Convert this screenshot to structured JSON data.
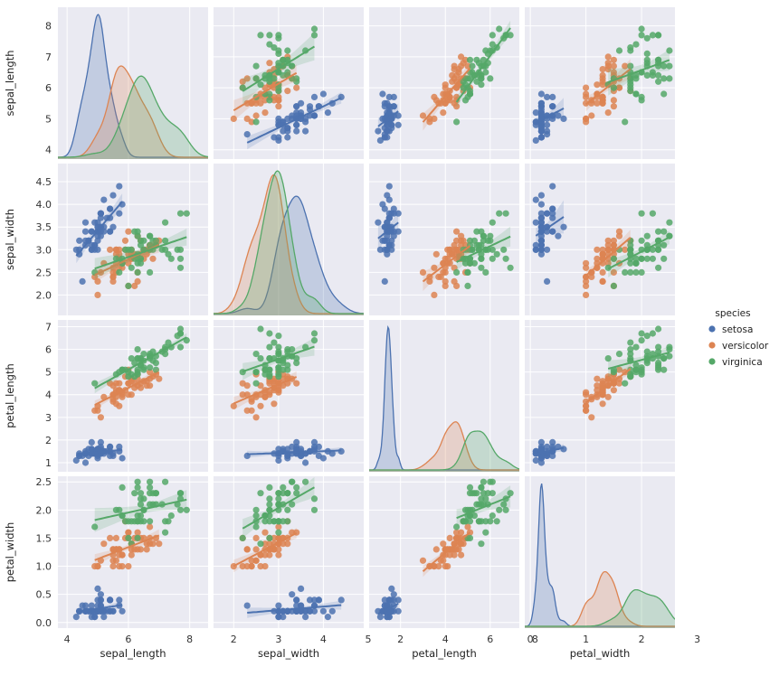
{
  "chart_data": {
    "type": "scatter",
    "variables": [
      "sepal_length",
      "sepal_width",
      "petal_length",
      "petal_width"
    ],
    "axes": {
      "sepal_length": {
        "range": [
          3.7,
          8.6
        ],
        "ticks": [
          "4",
          "5",
          "6",
          "7",
          "8"
        ],
        "ticks_x": [
          "4",
          "6",
          "8"
        ]
      },
      "sepal_width": {
        "range": [
          1.55,
          4.9
        ],
        "ticks": [
          "2.0",
          "2.5",
          "3.0",
          "3.5",
          "4.0",
          "4.5"
        ],
        "ticks_x": [
          "2",
          "3",
          "4",
          "5"
        ]
      },
      "petal_length": {
        "range": [
          0.6,
          7.3
        ],
        "ticks": [
          "1",
          "2",
          "3",
          "4",
          "5",
          "6",
          "7"
        ],
        "ticks_x": [
          "2",
          "4",
          "6",
          "8"
        ]
      },
      "petal_width": {
        "range": [
          -0.1,
          2.6
        ],
        "ticks": [
          "0.0",
          "0.5",
          "1.0",
          "1.5",
          "2.0",
          "2.5"
        ],
        "ticks_x": [
          "0",
          "1",
          "2",
          "3"
        ]
      }
    },
    "diagonal": "kde",
    "off_diagonal": "scatter with linear regression line and confidence band",
    "legend": {
      "title": "species",
      "placement": "right",
      "entries": [
        {
          "name": "setosa",
          "color": "#4c72b0"
        },
        {
          "name": "versicolor",
          "color": "#dd8452"
        },
        {
          "name": "virginica",
          "color": "#55a868"
        }
      ]
    },
    "grid": true,
    "background": "#eaeaf2",
    "series": [
      {
        "name": "setosa",
        "color": "#4c72b0",
        "points": [
          [
            5.1,
            3.5,
            1.4,
            0.2
          ],
          [
            4.9,
            3.0,
            1.4,
            0.2
          ],
          [
            4.7,
            3.2,
            1.3,
            0.2
          ],
          [
            4.6,
            3.1,
            1.5,
            0.2
          ],
          [
            5.0,
            3.6,
            1.4,
            0.2
          ],
          [
            5.4,
            3.9,
            1.7,
            0.4
          ],
          [
            4.6,
            3.4,
            1.4,
            0.3
          ],
          [
            5.0,
            3.4,
            1.5,
            0.2
          ],
          [
            4.4,
            2.9,
            1.4,
            0.2
          ],
          [
            4.9,
            3.1,
            1.5,
            0.1
          ],
          [
            5.4,
            3.7,
            1.5,
            0.2
          ],
          [
            4.8,
            3.4,
            1.6,
            0.2
          ],
          [
            4.8,
            3.0,
            1.4,
            0.1
          ],
          [
            4.3,
            3.0,
            1.1,
            0.1
          ],
          [
            5.8,
            4.0,
            1.2,
            0.2
          ],
          [
            5.7,
            4.4,
            1.5,
            0.4
          ],
          [
            5.4,
            3.9,
            1.3,
            0.4
          ],
          [
            5.1,
            3.5,
            1.4,
            0.3
          ],
          [
            5.7,
            3.8,
            1.7,
            0.3
          ],
          [
            5.1,
            3.8,
            1.5,
            0.3
          ],
          [
            5.4,
            3.4,
            1.7,
            0.2
          ],
          [
            5.1,
            3.7,
            1.5,
            0.4
          ],
          [
            4.6,
            3.6,
            1.0,
            0.2
          ],
          [
            5.1,
            3.3,
            1.7,
            0.5
          ],
          [
            4.8,
            3.4,
            1.9,
            0.2
          ],
          [
            5.0,
            3.0,
            1.6,
            0.2
          ],
          [
            5.0,
            3.4,
            1.6,
            0.4
          ],
          [
            5.2,
            3.5,
            1.5,
            0.2
          ],
          [
            5.2,
            3.4,
            1.4,
            0.2
          ],
          [
            4.7,
            3.2,
            1.6,
            0.2
          ],
          [
            4.8,
            3.1,
            1.6,
            0.2
          ],
          [
            5.4,
            3.4,
            1.5,
            0.4
          ],
          [
            5.2,
            4.1,
            1.5,
            0.1
          ],
          [
            5.5,
            4.2,
            1.4,
            0.2
          ],
          [
            4.9,
            3.1,
            1.5,
            0.2
          ],
          [
            5.0,
            3.2,
            1.2,
            0.2
          ],
          [
            5.5,
            3.5,
            1.3,
            0.2
          ],
          [
            4.9,
            3.6,
            1.4,
            0.1
          ],
          [
            4.4,
            3.0,
            1.3,
            0.2
          ],
          [
            5.1,
            3.4,
            1.5,
            0.2
          ],
          [
            5.0,
            3.5,
            1.3,
            0.3
          ],
          [
            4.5,
            2.3,
            1.3,
            0.3
          ],
          [
            4.4,
            3.2,
            1.3,
            0.2
          ],
          [
            5.0,
            3.5,
            1.6,
            0.6
          ],
          [
            5.1,
            3.8,
            1.9,
            0.4
          ],
          [
            4.8,
            3.0,
            1.4,
            0.3
          ],
          [
            5.1,
            3.8,
            1.6,
            0.2
          ],
          [
            4.6,
            3.2,
            1.4,
            0.2
          ],
          [
            5.3,
            3.7,
            1.5,
            0.2
          ],
          [
            5.0,
            3.3,
            1.4,
            0.2
          ]
        ]
      },
      {
        "name": "versicolor",
        "color": "#dd8452",
        "points": [
          [
            7.0,
            3.2,
            4.7,
            1.4
          ],
          [
            6.4,
            3.2,
            4.5,
            1.5
          ],
          [
            6.9,
            3.1,
            4.9,
            1.5
          ],
          [
            5.5,
            2.3,
            4.0,
            1.3
          ],
          [
            6.5,
            2.8,
            4.6,
            1.5
          ],
          [
            5.7,
            2.8,
            4.5,
            1.3
          ],
          [
            6.3,
            3.3,
            4.7,
            1.6
          ],
          [
            4.9,
            2.4,
            3.3,
            1.0
          ],
          [
            6.6,
            2.9,
            4.6,
            1.3
          ],
          [
            5.2,
            2.7,
            3.9,
            1.4
          ],
          [
            5.0,
            2.0,
            3.5,
            1.0
          ],
          [
            5.9,
            3.0,
            4.2,
            1.5
          ],
          [
            6.0,
            2.2,
            4.0,
            1.0
          ],
          [
            6.1,
            2.9,
            4.7,
            1.4
          ],
          [
            5.6,
            2.9,
            3.6,
            1.3
          ],
          [
            6.7,
            3.1,
            4.4,
            1.4
          ],
          [
            5.6,
            3.0,
            4.5,
            1.5
          ],
          [
            5.8,
            2.7,
            4.1,
            1.0
          ],
          [
            6.2,
            2.2,
            4.5,
            1.5
          ],
          [
            5.6,
            2.5,
            3.9,
            1.1
          ],
          [
            5.9,
            3.2,
            4.8,
            1.8
          ],
          [
            6.1,
            2.8,
            4.0,
            1.3
          ],
          [
            6.3,
            2.5,
            4.9,
            1.5
          ],
          [
            6.1,
            2.8,
            4.7,
            1.2
          ],
          [
            6.4,
            2.9,
            4.3,
            1.3
          ],
          [
            6.6,
            3.0,
            4.4,
            1.4
          ],
          [
            6.8,
            2.8,
            4.8,
            1.4
          ],
          [
            6.7,
            3.0,
            5.0,
            1.7
          ],
          [
            6.0,
            2.9,
            4.5,
            1.5
          ],
          [
            5.7,
            2.6,
            3.5,
            1.0
          ],
          [
            5.5,
            2.4,
            3.8,
            1.1
          ],
          [
            5.5,
            2.4,
            3.7,
            1.0
          ],
          [
            5.8,
            2.7,
            3.9,
            1.2
          ],
          [
            6.0,
            2.7,
            5.1,
            1.6
          ],
          [
            5.4,
            3.0,
            4.5,
            1.5
          ],
          [
            6.0,
            3.4,
            4.5,
            1.6
          ],
          [
            6.7,
            3.1,
            4.7,
            1.5
          ],
          [
            6.3,
            2.3,
            4.4,
            1.3
          ],
          [
            5.6,
            3.0,
            4.1,
            1.3
          ],
          [
            5.5,
            2.5,
            4.0,
            1.3
          ],
          [
            5.5,
            2.6,
            4.4,
            1.2
          ],
          [
            6.1,
            3.0,
            4.6,
            1.4
          ],
          [
            5.8,
            2.6,
            4.0,
            1.2
          ],
          [
            5.0,
            2.3,
            3.3,
            1.0
          ],
          [
            5.6,
            2.7,
            4.2,
            1.3
          ],
          [
            5.7,
            3.0,
            4.2,
            1.2
          ],
          [
            5.7,
            2.9,
            4.2,
            1.3
          ],
          [
            6.2,
            2.9,
            4.3,
            1.3
          ],
          [
            5.1,
            2.5,
            3.0,
            1.1
          ],
          [
            5.7,
            2.8,
            4.1,
            1.3
          ]
        ]
      },
      {
        "name": "virginica",
        "color": "#55a868",
        "points": [
          [
            6.3,
            3.3,
            6.0,
            2.5
          ],
          [
            5.8,
            2.7,
            5.1,
            1.9
          ],
          [
            7.1,
            3.0,
            5.9,
            2.1
          ],
          [
            6.3,
            2.9,
            5.6,
            1.8
          ],
          [
            6.5,
            3.0,
            5.8,
            2.2
          ],
          [
            7.6,
            3.0,
            6.6,
            2.1
          ],
          [
            4.9,
            2.5,
            4.5,
            1.7
          ],
          [
            7.3,
            2.9,
            6.3,
            1.8
          ],
          [
            6.7,
            2.5,
            5.8,
            1.8
          ],
          [
            7.2,
            3.6,
            6.1,
            2.5
          ],
          [
            6.5,
            3.2,
            5.1,
            2.0
          ],
          [
            6.4,
            2.7,
            5.3,
            1.9
          ],
          [
            6.8,
            3.0,
            5.5,
            2.1
          ],
          [
            5.7,
            2.5,
            5.0,
            2.0
          ],
          [
            5.8,
            2.8,
            5.1,
            2.4
          ],
          [
            6.4,
            3.2,
            5.3,
            2.3
          ],
          [
            6.5,
            3.0,
            5.5,
            1.8
          ],
          [
            7.7,
            3.8,
            6.7,
            2.2
          ],
          [
            7.7,
            2.6,
            6.9,
            2.3
          ],
          [
            6.0,
            2.2,
            5.0,
            1.5
          ],
          [
            6.9,
            3.2,
            5.7,
            2.3
          ],
          [
            5.6,
            2.8,
            4.9,
            2.0
          ],
          [
            7.7,
            2.8,
            6.7,
            2.0
          ],
          [
            6.3,
            2.7,
            4.9,
            1.8
          ],
          [
            6.7,
            3.3,
            5.7,
            2.1
          ],
          [
            7.2,
            3.2,
            6.0,
            1.8
          ],
          [
            6.2,
            2.8,
            4.8,
            1.8
          ],
          [
            6.1,
            3.0,
            4.9,
            1.8
          ],
          [
            6.4,
            2.8,
            5.6,
            2.1
          ],
          [
            7.2,
            3.0,
            5.8,
            1.6
          ],
          [
            7.4,
            2.8,
            6.1,
            1.9
          ],
          [
            7.9,
            3.8,
            6.4,
            2.0
          ],
          [
            6.4,
            2.8,
            5.6,
            2.2
          ],
          [
            6.3,
            2.8,
            5.1,
            1.5
          ],
          [
            6.1,
            2.6,
            5.6,
            1.4
          ],
          [
            7.7,
            3.0,
            6.1,
            2.3
          ],
          [
            6.3,
            3.4,
            5.6,
            2.4
          ],
          [
            6.4,
            3.1,
            5.5,
            1.8
          ],
          [
            6.0,
            3.0,
            4.8,
            1.8
          ],
          [
            6.9,
            3.1,
            5.4,
            2.1
          ],
          [
            6.7,
            3.1,
            5.6,
            2.4
          ],
          [
            6.9,
            3.1,
            5.1,
            2.3
          ],
          [
            5.8,
            2.7,
            5.1,
            1.9
          ],
          [
            6.8,
            3.2,
            5.9,
            2.3
          ],
          [
            6.7,
            3.3,
            5.7,
            2.5
          ],
          [
            6.7,
            3.0,
            5.2,
            2.3
          ],
          [
            6.3,
            2.5,
            5.0,
            1.9
          ],
          [
            6.5,
            3.0,
            5.2,
            2.0
          ],
          [
            6.2,
            3.4,
            5.4,
            2.3
          ],
          [
            5.9,
            3.0,
            5.1,
            1.8
          ]
        ]
      }
    ]
  }
}
